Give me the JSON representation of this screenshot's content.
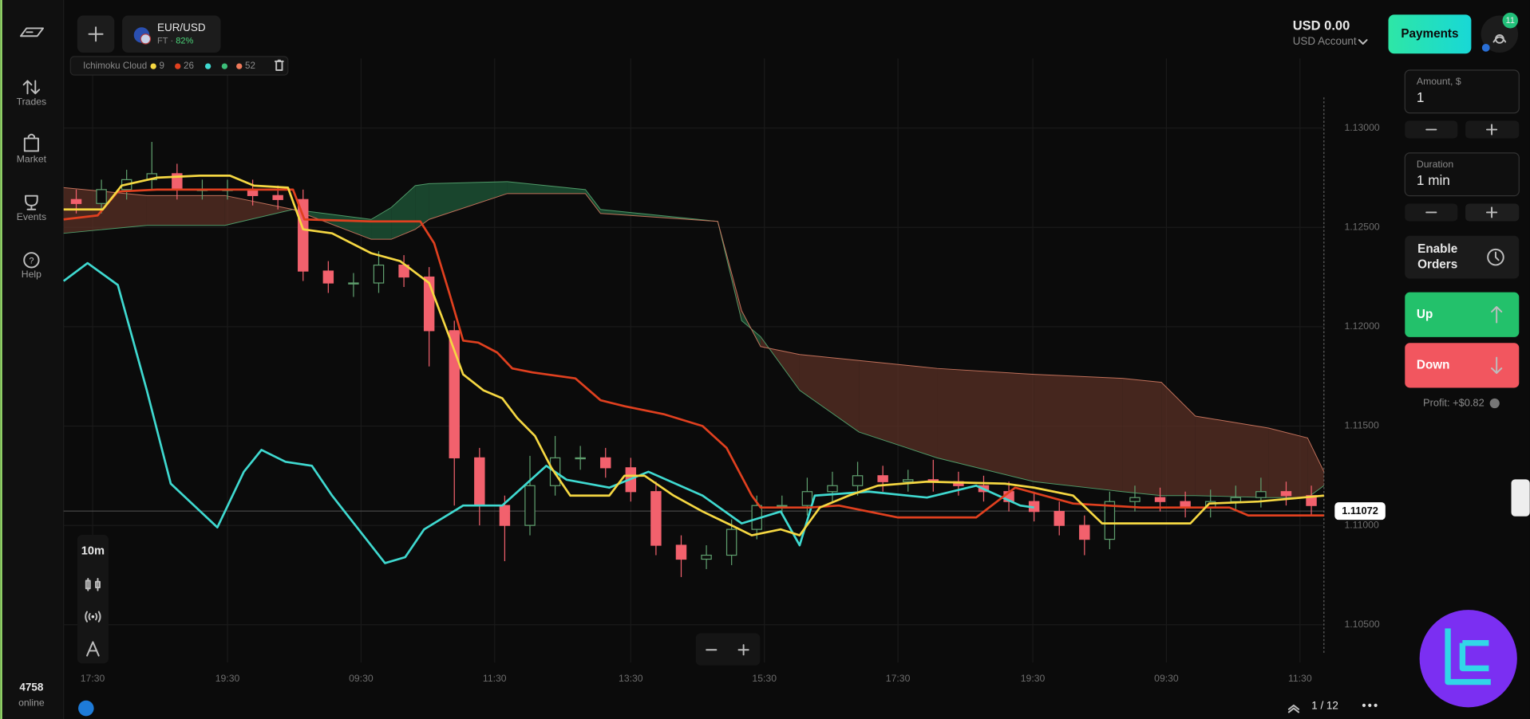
{
  "sidebar": {
    "nav": [
      "Trades",
      "Market",
      "Events",
      "Help"
    ],
    "online_count": 4758,
    "online_label": "online"
  },
  "header": {
    "asset": "EUR/USD",
    "asset_type": "FT",
    "payout": "82%",
    "indicator": {
      "name": "Ichimoku Cloud",
      "params": [
        9,
        26,
        52
      ]
    }
  },
  "account": {
    "balance": "USD 0.00",
    "account_name": "USD Account",
    "payments": "Payments",
    "notifications": 11
  },
  "trade_panel": {
    "amount_label": "Amount, $",
    "amount": "1",
    "duration_label": "Duration",
    "duration": "1 min",
    "enable_orders": [
      "Enable",
      "Orders"
    ],
    "up": "Up",
    "down": "Down",
    "profit": "Profit: +$0.82"
  },
  "chart_controls": {
    "timeframe": "10m",
    "pager": "1 / 12"
  },
  "chart_data": {
    "type": "candlestick",
    "xlim": [
      0,
      100
    ],
    "ylim": [
      1.1031,
      1.1335
    ],
    "grid": true,
    "xticks": [
      {
        "value": 2.3,
        "label": "17:30"
      },
      {
        "value": 13,
        "label": "19:30"
      },
      {
        "value": 23.6,
        "label": "09:30"
      },
      {
        "value": 34.2,
        "label": "11:30"
      },
      {
        "value": 45,
        "label": "13:30"
      },
      {
        "value": 55.6,
        "label": "15:30"
      },
      {
        "value": 66.2,
        "label": "17:30"
      },
      {
        "value": 76.9,
        "label": "19:30"
      },
      {
        "value": 87.5,
        "label": "09:30"
      },
      {
        "value": 98.1,
        "label": "11:30"
      }
    ],
    "yticks": [
      {
        "value": 1.13,
        "label": "1.13000"
      },
      {
        "value": 1.125,
        "label": "1.12500"
      },
      {
        "value": 1.12,
        "label": "1.12000"
      },
      {
        "value": 1.115,
        "label": "1.11500"
      },
      {
        "value": 1.11,
        "label": "1.11000"
      },
      {
        "value": 1.105,
        "label": "1.10500"
      }
    ],
    "last_price": 1.11072,
    "candles": {
      "up_color": "#5f9f6e",
      "down_color": "#f2616d",
      "x": [
        1,
        3,
        5,
        7,
        9,
        11,
        13,
        15,
        17,
        19,
        21,
        23,
        25,
        27,
        29,
        31,
        33,
        35,
        37,
        39,
        41,
        43,
        45,
        47,
        49,
        51,
        53,
        55,
        57,
        59,
        61,
        63,
        65,
        67,
        69,
        71,
        73,
        75,
        77,
        79,
        81,
        83,
        85,
        87,
        89,
        91,
        93,
        95,
        97,
        99
      ],
      "open": [
        1.1264,
        1.1262,
        1.1269,
        1.1274,
        1.1277,
        1.1269,
        1.1269,
        1.1269,
        1.1266,
        1.1264,
        1.1228,
        1.1222,
        1.1222,
        1.1231,
        1.1225,
        1.1198,
        1.1134,
        1.111,
        1.11,
        1.112,
        1.1134,
        1.1134,
        1.1129,
        1.1117,
        1.109,
        1.1083,
        1.1085,
        1.1098,
        1.111,
        1.111,
        1.1117,
        1.112,
        1.1125,
        1.1122,
        1.1123,
        1.1122,
        1.112,
        1.1117,
        1.1112,
        1.1107,
        1.11,
        1.1093,
        1.1112,
        1.1114,
        1.1112,
        1.1109,
        1.1112,
        1.1114,
        1.1117,
        1.1115
      ],
      "high": [
        1.1269,
        1.1274,
        1.1279,
        1.1293,
        1.1282,
        1.1274,
        1.1274,
        1.1274,
        1.1271,
        1.1269,
        1.1233,
        1.1227,
        1.1238,
        1.1236,
        1.123,
        1.1203,
        1.1139,
        1.1115,
        1.1135,
        1.1145,
        1.114,
        1.1139,
        1.1134,
        1.1122,
        1.1095,
        1.109,
        1.1103,
        1.1115,
        1.1115,
        1.1124,
        1.1127,
        1.1132,
        1.113,
        1.1128,
        1.1133,
        1.1127,
        1.1125,
        1.1122,
        1.1117,
        1.1112,
        1.1105,
        1.1117,
        1.112,
        1.1119,
        1.1117,
        1.1118,
        1.112,
        1.1124,
        1.1122,
        1.112
      ],
      "low": [
        1.1257,
        1.1257,
        1.1264,
        1.1269,
        1.1264,
        1.1264,
        1.1264,
        1.1261,
        1.1259,
        1.1223,
        1.1217,
        1.1215,
        1.1217,
        1.122,
        1.118,
        1.111,
        1.11,
        1.1082,
        1.1095,
        1.1115,
        1.1128,
        1.1124,
        1.1112,
        1.1085,
        1.1074,
        1.1078,
        1.108,
        1.1093,
        1.1105,
        1.1105,
        1.1112,
        1.1115,
        1.1117,
        1.1117,
        1.1117,
        1.1115,
        1.1112,
        1.1107,
        1.1102,
        1.1095,
        1.1085,
        1.1088,
        1.1107,
        1.1107,
        1.1104,
        1.1104,
        1.1107,
        1.1109,
        1.111,
        1.1105
      ],
      "close": [
        1.1262,
        1.1269,
        1.1274,
        1.1277,
        1.1269,
        1.1269,
        1.1269,
        1.1266,
        1.1264,
        1.1228,
        1.1222,
        1.1222,
        1.1231,
        1.1225,
        1.1198,
        1.1134,
        1.111,
        1.11,
        1.112,
        1.1134,
        1.1134,
        1.1129,
        1.1117,
        1.109,
        1.1083,
        1.1085,
        1.1098,
        1.111,
        1.111,
        1.1117,
        1.112,
        1.1125,
        1.1122,
        1.1123,
        1.1122,
        1.112,
        1.1117,
        1.1112,
        1.1107,
        1.11,
        1.1093,
        1.1112,
        1.1114,
        1.1112,
        1.1109,
        1.1112,
        1.1114,
        1.1117,
        1.1115,
        1.111
      ]
    },
    "cloud": {
      "bull_color": "#1f5a3a",
      "bear_color": "#5a3026",
      "x": [
        0,
        6.6,
        12.8,
        18.2,
        24.4,
        26.0,
        27.9,
        29.0,
        35.2,
        41.4,
        42.6,
        51.9,
        53.8,
        55.3,
        58.4,
        63.1,
        69.3,
        77.0,
        84.0,
        87.1,
        89.8,
        95.6,
        98.7,
        100
      ],
      "span_a": [
        1.1247,
        1.1251,
        1.1251,
        1.1259,
        1.1254,
        1.126,
        1.1271,
        1.1272,
        1.1273,
        1.1269,
        1.1259,
        1.1253,
        1.1203,
        1.1195,
        1.1168,
        1.1147,
        1.1134,
        1.1122,
        1.1117,
        1.1115,
        1.1115,
        1.1114,
        1.1114,
        1.112
      ],
      "span_b": [
        1.127,
        1.1266,
        1.1266,
        1.1259,
        1.1244,
        1.1244,
        1.1249,
        1.1254,
        1.1267,
        1.1267,
        1.1257,
        1.1253,
        1.1208,
        1.119,
        1.1186,
        1.1183,
        1.1179,
        1.1176,
        1.1174,
        1.1172,
        1.1155,
        1.1149,
        1.1144,
        1.1127
      ]
    },
    "series": [
      {
        "color": "#3fd9d0",
        "x": [
          0,
          1.9,
          4.3,
          6.6,
          8.5,
          12.2,
          14.3,
          15.7,
          17.6,
          19.7,
          21.3,
          25.5,
          27.1,
          28.6,
          31.7,
          34.8,
          38.3,
          39.9,
          43.3,
          46.4,
          50.7,
          53.8,
          56.9,
          58.4,
          59.6,
          63.9,
          68.5,
          72.4,
          75.9,
          77.0
        ],
        "values": [
          1.1223,
          1.1232,
          1.1221,
          1.1168,
          1.1121,
          1.1099,
          1.1127,
          1.1138,
          1.1132,
          1.113,
          1.1115,
          1.1081,
          1.1084,
          1.1098,
          1.111,
          1.111,
          1.113,
          1.1123,
          1.1119,
          1.1127,
          1.1115,
          1.1101,
          1.1107,
          1.109,
          1.1115,
          1.1117,
          1.1114,
          1.112,
          1.111,
          1.1109
        ]
      },
      {
        "color": "#e0401f",
        "x": [
          0,
          2.7,
          4.3,
          7.4,
          18.2,
          19.1,
          24.4,
          28.3,
          29.4,
          30.6,
          31.7,
          32.9,
          34.4,
          35.6,
          37.2,
          40.6,
          42.6,
          44.5,
          47.6,
          50.7,
          52.6,
          54.6,
          55.3,
          59.2,
          61.5,
          66.2,
          72.4,
          75.5,
          80.1,
          85.5,
          92.5,
          94.0,
          100
        ],
        "values": [
          1.1254,
          1.1256,
          1.1268,
          1.1269,
          1.1269,
          1.1254,
          1.1253,
          1.1253,
          1.1242,
          1.1217,
          1.1193,
          1.1192,
          1.1187,
          1.1179,
          1.1177,
          1.1174,
          1.1163,
          1.116,
          1.1156,
          1.115,
          1.1139,
          1.1115,
          1.1109,
          1.1109,
          1.111,
          1.1104,
          1.1104,
          1.1119,
          1.1111,
          1.1109,
          1.1109,
          1.1105,
          1.1105
        ]
      },
      {
        "color": "#f5d742",
        "x": [
          0,
          3.1,
          4.6,
          7.4,
          10.8,
          13.2,
          15.1,
          17.8,
          19.0,
          21.3,
          24.4,
          26.7,
          29.0,
          30.6,
          31.7,
          33.3,
          34.8,
          36.0,
          37.4,
          38.7,
          40.2,
          43.3,
          44.5,
          46.1,
          48.4,
          50.7,
          53.0,
          54.6,
          56.9,
          58.4,
          60.0,
          62.3,
          64.6,
          68.5,
          74.7,
          77.0,
          80.1,
          82.4,
          89.4,
          90.9,
          94.8,
          100
        ],
        "values": [
          1.1259,
          1.1259,
          1.1271,
          1.1275,
          1.1276,
          1.1276,
          1.1271,
          1.127,
          1.1249,
          1.1247,
          1.1237,
          1.1233,
          1.1222,
          1.1195,
          1.1176,
          1.1168,
          1.1164,
          1.1154,
          1.1145,
          1.1129,
          1.1115,
          1.1115,
          1.1125,
          1.1125,
          1.1115,
          1.1107,
          1.11,
          1.1095,
          1.1098,
          1.1095,
          1.1109,
          1.1115,
          1.112,
          1.1122,
          1.1121,
          1.1119,
          1.1115,
          1.1101,
          1.1101,
          1.1111,
          1.1112,
          1.1115
        ]
      }
    ]
  }
}
